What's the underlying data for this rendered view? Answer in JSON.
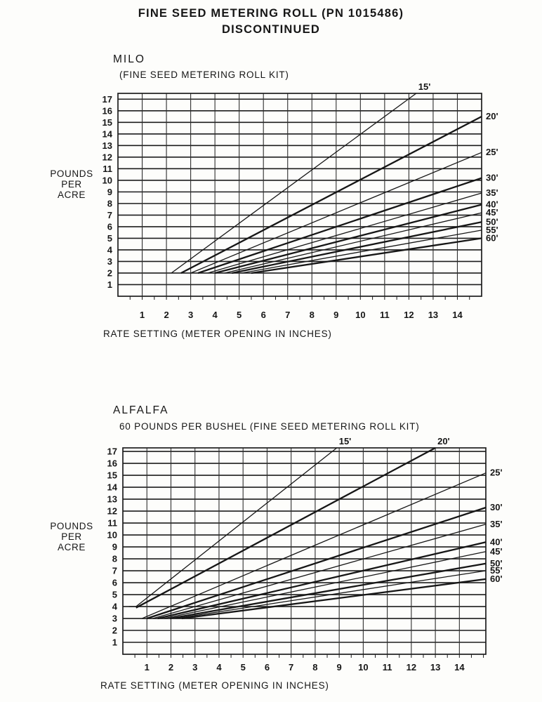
{
  "heading": {
    "line1": "FINE SEED METERING ROLL (PN 1015486)",
    "line2": "DISCONTINUED"
  },
  "chart_data": [
    {
      "type": "line",
      "title": "MILO",
      "subtitle": "(FINE SEED METERING ROLL KIT)",
      "ylabel_lines": [
        "POUNDS",
        "PER",
        "ACRE"
      ],
      "xlabel": "RATE SETTING (METER OPENING IN INCHES)",
      "x_ticks": [
        1,
        2,
        3,
        4,
        5,
        6,
        7,
        8,
        9,
        10,
        11,
        12,
        13,
        14
      ],
      "y_ticks": [
        1,
        2,
        3,
        4,
        5,
        6,
        7,
        8,
        9,
        10,
        11,
        12,
        13,
        14,
        15,
        16,
        17
      ],
      "xlim": [
        0,
        15
      ],
      "ylim": [
        0,
        17.5
      ],
      "grid": "on",
      "legend_position": "line-end-labels",
      "series": [
        {
          "name": "15'",
          "label_pos": "top",
          "points": [
            [
              2.2,
              2
            ],
            [
              12.3,
              17.5
            ]
          ]
        },
        {
          "name": "20'",
          "label_pos": "right",
          "points": [
            [
              2.6,
              2
            ],
            [
              15,
              15.5
            ]
          ]
        },
        {
          "name": "25'",
          "label_pos": "right",
          "points": [
            [
              3.0,
              2
            ],
            [
              15,
              12.4
            ]
          ]
        },
        {
          "name": "30'",
          "label_pos": "right",
          "points": [
            [
              3.3,
              2
            ],
            [
              15,
              10.2
            ]
          ]
        },
        {
          "name": "35'",
          "label_pos": "right",
          "points": [
            [
              3.7,
              2
            ],
            [
              15,
              8.9
            ]
          ]
        },
        {
          "name": "40'",
          "label_pos": "right",
          "points": [
            [
              4.0,
              2
            ],
            [
              15,
              7.9
            ]
          ]
        },
        {
          "name": "45'",
          "label_pos": "right",
          "points": [
            [
              4.4,
              2
            ],
            [
              15,
              7.2
            ]
          ]
        },
        {
          "name": "50'",
          "label_pos": "right",
          "points": [
            [
              4.7,
              2
            ],
            [
              15,
              6.4
            ]
          ]
        },
        {
          "name": "55'",
          "label_pos": "right",
          "points": [
            [
              5.1,
              2
            ],
            [
              15,
              5.7
            ]
          ]
        },
        {
          "name": "60'",
          "label_pos": "right",
          "points": [
            [
              5.5,
              2
            ],
            [
              15,
              5.0
            ]
          ]
        }
      ]
    },
    {
      "type": "line",
      "title": "ALFALFA",
      "subtitle": "60 POUNDS PER BUSHEL (FINE SEED METERING ROLL KIT)",
      "ylabel_lines": [
        "POUNDS",
        "PER",
        "ACRE"
      ],
      "xlabel": "RATE SETTING (METER OPENING IN INCHES)",
      "x_ticks": [
        1,
        2,
        3,
        4,
        5,
        6,
        7,
        8,
        9,
        10,
        11,
        12,
        13,
        14
      ],
      "y_ticks": [
        1,
        2,
        3,
        4,
        5,
        6,
        7,
        8,
        9,
        10,
        11,
        12,
        13,
        14,
        15,
        16,
        17
      ],
      "xlim": [
        0,
        15.1
      ],
      "ylim": [
        0,
        17.3
      ],
      "grid": "on",
      "legend_position": "line-end-labels",
      "series": [
        {
          "name": "15'",
          "label_pos": "top",
          "points": [
            [
              0.25,
              4
            ],
            [
              0.55,
              4
            ],
            [
              8.9,
              17.3
            ]
          ]
        },
        {
          "name": "20'",
          "label_pos": "top",
          "points": [
            [
              0.55,
              3.9
            ],
            [
              13.0,
              17.3
            ]
          ]
        },
        {
          "name": "25'",
          "label_pos": "right",
          "points": [
            [
              0.8,
              3
            ],
            [
              15.1,
              15.2
            ]
          ]
        },
        {
          "name": "30'",
          "label_pos": "right",
          "points": [
            [
              1.0,
              3
            ],
            [
              15.1,
              12.3
            ]
          ]
        },
        {
          "name": "35'",
          "label_pos": "right",
          "points": [
            [
              1.25,
              3
            ],
            [
              15.1,
              10.9
            ]
          ]
        },
        {
          "name": "40'",
          "label_pos": "right",
          "points": [
            [
              1.45,
              3
            ],
            [
              15.1,
              9.4
            ]
          ]
        },
        {
          "name": "45'",
          "label_pos": "right",
          "points": [
            [
              1.7,
              3
            ],
            [
              15.1,
              8.6
            ]
          ]
        },
        {
          "name": "50'",
          "label_pos": "right",
          "points": [
            [
              1.95,
              3
            ],
            [
              15.1,
              7.6
            ]
          ]
        },
        {
          "name": "55'",
          "label_pos": "right",
          "points": [
            [
              2.2,
              3
            ],
            [
              15.1,
              7.0
            ]
          ]
        },
        {
          "name": "60'",
          "label_pos": "right",
          "points": [
            [
              2.45,
              3
            ],
            [
              15.1,
              6.3
            ]
          ]
        }
      ]
    }
  ],
  "colors": {
    "ink": "#161616",
    "h_grid": "#1d1d1d",
    "v_grid": "#2e2e2e",
    "background": "#fdfdfb"
  }
}
